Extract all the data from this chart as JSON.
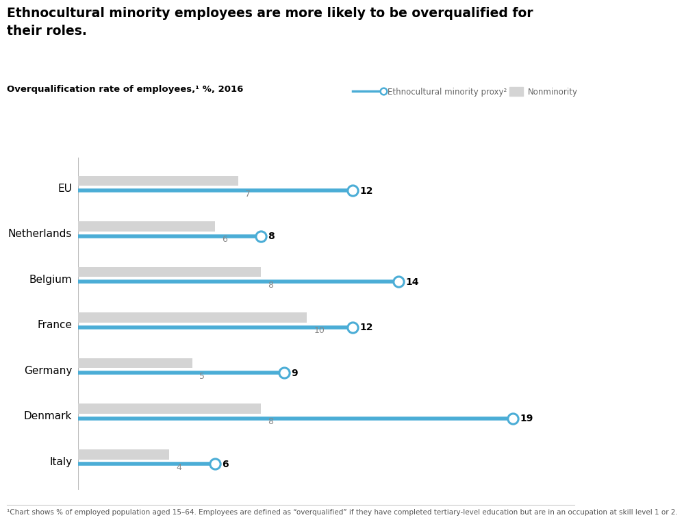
{
  "title_line1": "Ethnocultural minority employees are more likely to be overqualified for",
  "title_line2": "their roles.",
  "subtitle": "Overqualification rate of employees,¹ %, 2016",
  "footnote": "¹Chart shows % of employed population aged 15–64. Employees are defined as “overqualified” if they have completed tertiary-level education but are in an occupation at skill level 1 or 2.",
  "categories": [
    "EU",
    "Netherlands",
    "Belgium",
    "France",
    "Germany",
    "Denmark",
    "Italy"
  ],
  "minority_values": [
    12,
    8,
    14,
    12,
    9,
    19,
    6
  ],
  "nonminority_values": [
    7,
    6,
    8,
    10,
    5,
    8,
    4
  ],
  "minority_color": "#4BADD6",
  "nonminority_color": "#D4D4D4",
  "minority_label": "Ethnocultural minority proxy²",
  "nonminority_label": "Nonminority",
  "bar_height": 0.22,
  "line_thickness": 4.0,
  "marker_size": 11,
  "x_max": 21,
  "background_color": "#FFFFFF"
}
